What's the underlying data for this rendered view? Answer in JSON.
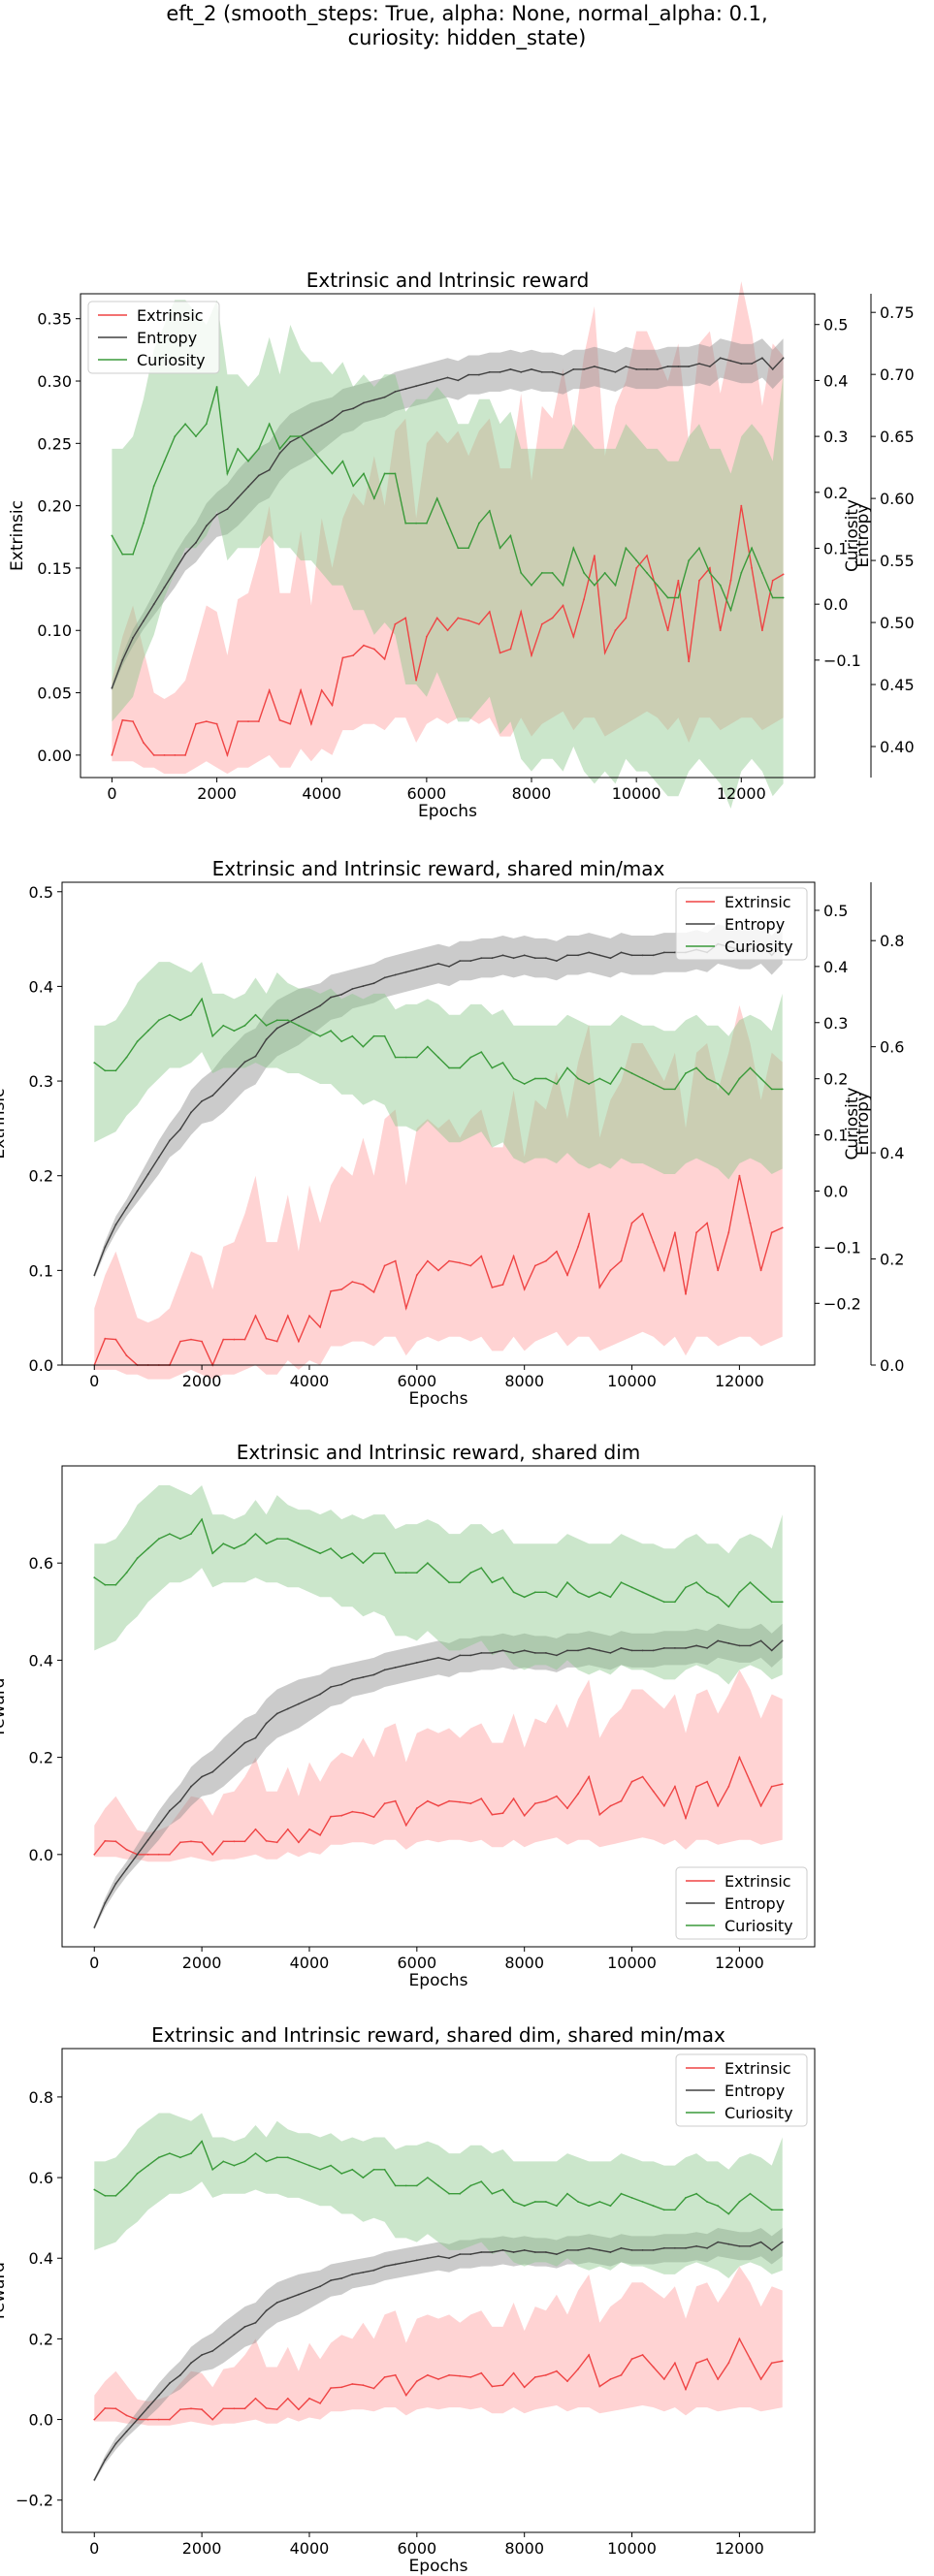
{
  "suptitle_lines": [
    "eft_2 (smooth_steps: True, alpha: None, normal_alpha: 0.1,",
    "curiosity: hidden_state)"
  ],
  "colors": {
    "extrinsic": "#ef4444",
    "entropy": "#404040",
    "curiosity": "#3a9a3a",
    "extrinsic_fill": "#ff9e9e",
    "entropy_fill": "#8c8c8c",
    "curiosity_fill": "#8cc88c"
  },
  "chart_data": [
    {
      "type": "line",
      "title": "Extrinsic and Intrinsic reward",
      "xlabel": "Epochs",
      "xlim": [
        -600,
        13400
      ],
      "xticks": [
        0,
        2000,
        4000,
        6000,
        8000,
        10000,
        12000
      ],
      "legend": "top-left",
      "axes": [
        {
          "side": "left",
          "label": "Extrinsic",
          "lim": [
            -0.018,
            0.37
          ],
          "ticks": [
            0.0,
            0.05,
            0.1,
            0.15,
            0.2,
            0.25,
            0.3,
            0.35
          ],
          "tick_labels": [
            "0.00",
            "0.05",
            "0.10",
            "0.15",
            "0.20",
            "0.25",
            "0.30",
            "0.35"
          ]
        },
        {
          "side": "right",
          "label": "Entropy",
          "lim": [
            -0.31,
            0.555
          ],
          "ticks": [
            -0.1,
            0.0,
            0.1,
            0.2,
            0.3,
            0.4,
            0.5
          ],
          "tick_labels": [
            "−0.1",
            "0.0",
            "0.1",
            "0.2",
            "0.3",
            "0.4",
            "0.5"
          ]
        },
        {
          "side": "right2",
          "label": "Curiosity",
          "lim": [
            0.375,
            0.765
          ],
          "ticks": [
            0.4,
            0.45,
            0.5,
            0.55,
            0.6,
            0.65,
            0.7,
            0.75
          ],
          "tick_labels": [
            "0.40",
            "0.45",
            "0.50",
            "0.55",
            "0.60",
            "0.65",
            "0.70",
            "0.75"
          ]
        }
      ],
      "series": [
        {
          "name": "Extrinsic",
          "key": "extrinsic",
          "axis": 0
        },
        {
          "name": "Entropy",
          "key": "entropy",
          "axis": 1
        },
        {
          "name": "Curiosity",
          "key": "curiosity",
          "axis": 2
        }
      ]
    },
    {
      "type": "line",
      "title": "Extrinsic and Intrinsic reward, shared min/max",
      "xlabel": "Epochs",
      "xlim": [
        -600,
        13400
      ],
      "xticks": [
        0,
        2000,
        4000,
        6000,
        8000,
        10000,
        12000
      ],
      "legend": "top-right",
      "axes": [
        {
          "side": "left",
          "label": "Extrinsic",
          "lim": [
            0.0,
            0.51
          ],
          "ticks": [
            0.0,
            0.1,
            0.2,
            0.3,
            0.4,
            0.5
          ],
          "tick_labels": [
            "0.0",
            "0.1",
            "0.2",
            "0.3",
            "0.4",
            "0.5"
          ]
        },
        {
          "side": "right",
          "label": "Entropy",
          "lim": [
            -0.31,
            0.55
          ],
          "ticks": [
            -0.2,
            -0.1,
            0.0,
            0.1,
            0.2,
            0.3,
            0.4,
            0.5
          ],
          "tick_labels": [
            "−0.2",
            "−0.1",
            "0.0",
            "0.1",
            "0.2",
            "0.3",
            "0.4",
            "0.5"
          ]
        },
        {
          "side": "right2",
          "label": "Curiosity",
          "lim": [
            0.0,
            0.91
          ],
          "ticks": [
            0.0,
            0.2,
            0.4,
            0.6,
            0.8
          ],
          "tick_labels": [
            "0.0",
            "0.2",
            "0.4",
            "0.6",
            "0.8"
          ]
        }
      ],
      "series": [
        {
          "name": "Extrinsic",
          "key": "extrinsic",
          "axis": 0
        },
        {
          "name": "Entropy",
          "key": "entropy",
          "axis": 1
        },
        {
          "name": "Curiosity",
          "key": "curiosity",
          "axis": 2
        }
      ]
    },
    {
      "type": "line",
      "title": "Extrinsic and Intrinsic reward, shared dim",
      "xlabel": "Epochs",
      "xlim": [
        -600,
        13400
      ],
      "xticks": [
        0,
        2000,
        4000,
        6000,
        8000,
        10000,
        12000
      ],
      "legend": "bottom-right",
      "axes": [
        {
          "side": "left",
          "label": "reward",
          "lim": [
            -0.19,
            0.8
          ],
          "ticks": [
            0.0,
            0.2,
            0.4,
            0.6
          ],
          "tick_labels": [
            "0.0",
            "0.2",
            "0.4",
            "0.6"
          ]
        }
      ],
      "series": [
        {
          "name": "Extrinsic",
          "key": "extrinsic",
          "axis": 0
        },
        {
          "name": "Entropy",
          "key": "entropy",
          "axis": 0
        },
        {
          "name": "Curiosity",
          "key": "curiosity",
          "axis": 0
        }
      ]
    },
    {
      "type": "line",
      "title": "Extrinsic and Intrinsic reward, shared dim, shared min/max",
      "xlabel": "Epochs",
      "xlim": [
        -600,
        13400
      ],
      "xticks": [
        0,
        2000,
        4000,
        6000,
        8000,
        10000,
        12000
      ],
      "legend": "top-right",
      "axes": [
        {
          "side": "left",
          "label": "reward",
          "lim": [
            -0.28,
            0.92
          ],
          "ticks": [
            -0.2,
            0.0,
            0.2,
            0.4,
            0.6,
            0.8
          ],
          "tick_labels": [
            "−0.2",
            "0.0",
            "0.2",
            "0.4",
            "0.6",
            "0.8"
          ]
        }
      ],
      "series": [
        {
          "name": "Extrinsic",
          "key": "extrinsic",
          "axis": 0
        },
        {
          "name": "Entropy",
          "key": "entropy",
          "axis": 0
        },
        {
          "name": "Curiosity",
          "key": "curiosity",
          "axis": 0
        }
      ]
    }
  ],
  "series_data": {
    "x": [
      0,
      200,
      400,
      600,
      800,
      1000,
      1200,
      1400,
      1600,
      1800,
      2000,
      2200,
      2400,
      2600,
      2800,
      3000,
      3200,
      3400,
      3600,
      3800,
      4000,
      4200,
      4400,
      4600,
      4800,
      5000,
      5200,
      5400,
      5600,
      5800,
      6000,
      6200,
      6400,
      6600,
      6800,
      7000,
      7200,
      7400,
      7600,
      7800,
      8000,
      8200,
      8400,
      8600,
      8800,
      9000,
      9200,
      9400,
      9600,
      9800,
      10000,
      10200,
      10400,
      10600,
      10800,
      11000,
      11200,
      11400,
      11600,
      11800,
      12000,
      12200,
      12400,
      12600,
      12800
    ],
    "extrinsic": [
      0.0,
      0.028,
      0.027,
      0.01,
      0.0,
      0.0,
      0.0,
      0.0,
      0.025,
      0.027,
      0.025,
      0.0,
      0.027,
      0.027,
      0.027,
      0.052,
      0.028,
      0.025,
      0.052,
      0.025,
      0.052,
      0.04,
      0.078,
      0.08,
      0.088,
      0.085,
      0.077,
      0.105,
      0.11,
      0.06,
      0.095,
      0.11,
      0.1,
      0.11,
      0.108,
      0.105,
      0.115,
      0.082,
      0.085,
      0.115,
      0.08,
      0.105,
      0.11,
      0.12,
      0.095,
      0.125,
      0.16,
      0.082,
      0.1,
      0.11,
      0.15,
      0.16,
      0.13,
      0.1,
      0.14,
      0.075,
      0.14,
      0.15,
      0.1,
      0.14,
      0.2,
      0.15,
      0.1,
      0.14,
      0.145
    ],
    "extrinsic_lo": [
      -0.005,
      -0.005,
      -0.005,
      -0.01,
      -0.01,
      -0.015,
      -0.015,
      -0.015,
      -0.01,
      -0.005,
      -0.01,
      -0.015,
      -0.01,
      -0.01,
      -0.005,
      0.0,
      -0.01,
      -0.01,
      0.005,
      -0.005,
      0.005,
      0.0,
      0.02,
      0.02,
      0.025,
      0.025,
      0.02,
      0.03,
      0.03,
      0.01,
      0.025,
      0.03,
      0.025,
      0.03,
      0.03,
      0.025,
      0.03,
      0.015,
      0.015,
      0.03,
      0.015,
      0.025,
      0.03,
      0.035,
      0.02,
      0.03,
      0.03,
      0.015,
      0.02,
      0.025,
      0.03,
      0.035,
      0.03,
      0.02,
      0.03,
      0.01,
      0.03,
      0.03,
      0.02,
      0.025,
      0.03,
      0.03,
      0.02,
      0.025,
      0.03
    ],
    "extrinsic_hi": [
      0.06,
      0.095,
      0.12,
      0.085,
      0.05,
      0.045,
      0.05,
      0.06,
      0.09,
      0.12,
      0.115,
      0.08,
      0.125,
      0.13,
      0.16,
      0.2,
      0.13,
      0.13,
      0.18,
      0.12,
      0.19,
      0.15,
      0.19,
      0.21,
      0.2,
      0.24,
      0.2,
      0.26,
      0.27,
      0.19,
      0.25,
      0.26,
      0.25,
      0.26,
      0.24,
      0.26,
      0.27,
      0.23,
      0.23,
      0.29,
      0.22,
      0.28,
      0.27,
      0.31,
      0.26,
      0.32,
      0.36,
      0.24,
      0.28,
      0.3,
      0.34,
      0.34,
      0.32,
      0.3,
      0.33,
      0.25,
      0.33,
      0.34,
      0.29,
      0.33,
      0.38,
      0.34,
      0.28,
      0.33,
      0.32
    ],
    "entropy": [
      -0.15,
      -0.1,
      -0.06,
      -0.03,
      0.0,
      0.03,
      0.06,
      0.09,
      0.11,
      0.14,
      0.16,
      0.17,
      0.19,
      0.21,
      0.23,
      0.24,
      0.27,
      0.29,
      0.3,
      0.31,
      0.32,
      0.33,
      0.345,
      0.35,
      0.36,
      0.365,
      0.37,
      0.38,
      0.385,
      0.39,
      0.395,
      0.4,
      0.405,
      0.4,
      0.41,
      0.41,
      0.415,
      0.415,
      0.42,
      0.415,
      0.42,
      0.415,
      0.415,
      0.41,
      0.42,
      0.42,
      0.425,
      0.42,
      0.415,
      0.425,
      0.42,
      0.42,
      0.42,
      0.425,
      0.425,
      0.425,
      0.43,
      0.425,
      0.44,
      0.435,
      0.43,
      0.43,
      0.44,
      0.42,
      0.44
    ],
    "entropy_lo": [
      -0.155,
      -0.11,
      -0.075,
      -0.045,
      -0.02,
      0.005,
      0.03,
      0.06,
      0.075,
      0.1,
      0.12,
      0.125,
      0.14,
      0.16,
      0.18,
      0.19,
      0.22,
      0.24,
      0.25,
      0.26,
      0.275,
      0.29,
      0.305,
      0.31,
      0.325,
      0.33,
      0.335,
      0.345,
      0.35,
      0.355,
      0.36,
      0.365,
      0.37,
      0.365,
      0.375,
      0.375,
      0.38,
      0.38,
      0.385,
      0.38,
      0.385,
      0.38,
      0.38,
      0.375,
      0.385,
      0.385,
      0.39,
      0.385,
      0.38,
      0.39,
      0.385,
      0.385,
      0.385,
      0.39,
      0.39,
      0.39,
      0.395,
      0.39,
      0.405,
      0.4,
      0.395,
      0.395,
      0.405,
      0.385,
      0.405
    ],
    "entropy_hi": [
      -0.145,
      -0.09,
      -0.045,
      -0.015,
      0.02,
      0.055,
      0.09,
      0.12,
      0.145,
      0.18,
      0.2,
      0.215,
      0.24,
      0.26,
      0.28,
      0.29,
      0.32,
      0.34,
      0.35,
      0.36,
      0.365,
      0.37,
      0.385,
      0.39,
      0.395,
      0.4,
      0.405,
      0.415,
      0.42,
      0.425,
      0.43,
      0.435,
      0.44,
      0.435,
      0.445,
      0.445,
      0.45,
      0.45,
      0.455,
      0.45,
      0.455,
      0.45,
      0.45,
      0.445,
      0.455,
      0.455,
      0.46,
      0.455,
      0.45,
      0.46,
      0.455,
      0.455,
      0.455,
      0.46,
      0.46,
      0.46,
      0.465,
      0.46,
      0.475,
      0.47,
      0.465,
      0.465,
      0.475,
      0.455,
      0.475
    ],
    "curiosity": [
      0.57,
      0.555,
      0.555,
      0.58,
      0.61,
      0.63,
      0.65,
      0.66,
      0.65,
      0.66,
      0.69,
      0.62,
      0.64,
      0.63,
      0.64,
      0.66,
      0.64,
      0.65,
      0.65,
      0.64,
      0.63,
      0.62,
      0.63,
      0.61,
      0.62,
      0.6,
      0.62,
      0.62,
      0.58,
      0.58,
      0.58,
      0.6,
      0.58,
      0.56,
      0.56,
      0.58,
      0.59,
      0.56,
      0.57,
      0.54,
      0.53,
      0.54,
      0.54,
      0.53,
      0.56,
      0.54,
      0.53,
      0.54,
      0.53,
      0.56,
      0.55,
      0.54,
      0.53,
      0.52,
      0.52,
      0.55,
      0.56,
      0.54,
      0.53,
      0.51,
      0.54,
      0.56,
      0.54,
      0.52,
      0.52
    ],
    "curiosity_lo": [
      0.42,
      0.43,
      0.44,
      0.47,
      0.49,
      0.52,
      0.54,
      0.56,
      0.56,
      0.57,
      0.59,
      0.55,
      0.56,
      0.56,
      0.56,
      0.57,
      0.56,
      0.56,
      0.55,
      0.55,
      0.54,
      0.53,
      0.53,
      0.51,
      0.51,
      0.49,
      0.5,
      0.49,
      0.45,
      0.45,
      0.44,
      0.46,
      0.44,
      0.42,
      0.42,
      0.43,
      0.44,
      0.41,
      0.42,
      0.39,
      0.38,
      0.39,
      0.39,
      0.38,
      0.4,
      0.38,
      0.37,
      0.38,
      0.37,
      0.39,
      0.38,
      0.38,
      0.37,
      0.36,
      0.36,
      0.38,
      0.39,
      0.38,
      0.37,
      0.35,
      0.38,
      0.39,
      0.38,
      0.36,
      0.37
    ],
    "curiosity_hi": [
      0.64,
      0.64,
      0.65,
      0.68,
      0.72,
      0.74,
      0.76,
      0.76,
      0.75,
      0.74,
      0.76,
      0.7,
      0.7,
      0.69,
      0.7,
      0.73,
      0.7,
      0.74,
      0.72,
      0.71,
      0.71,
      0.7,
      0.71,
      0.69,
      0.7,
      0.69,
      0.7,
      0.7,
      0.67,
      0.68,
      0.68,
      0.69,
      0.68,
      0.66,
      0.66,
      0.68,
      0.68,
      0.66,
      0.67,
      0.64,
      0.64,
      0.64,
      0.64,
      0.64,
      0.66,
      0.65,
      0.64,
      0.64,
      0.64,
      0.66,
      0.65,
      0.64,
      0.64,
      0.63,
      0.63,
      0.65,
      0.66,
      0.64,
      0.64,
      0.62,
      0.65,
      0.66,
      0.65,
      0.63,
      0.7
    ]
  }
}
